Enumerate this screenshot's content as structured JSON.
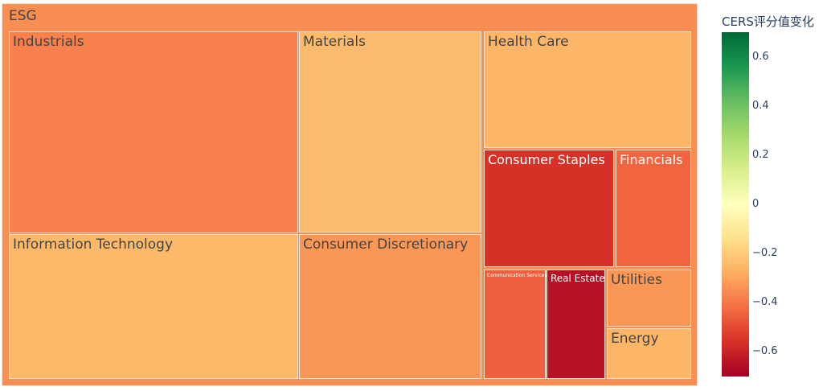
{
  "chart_data": {
    "type": "treemap",
    "root": "ESG",
    "colorbar": {
      "title": "CERS评分值变化",
      "range": [
        -0.7,
        0.7
      ],
      "ticks": [
        0.6,
        0.4,
        0.2,
        0,
        -0.2,
        -0.4,
        -0.6
      ],
      "tick_labels": [
        "0.6",
        "0.4",
        "0.2",
        "0",
        "−0.2",
        "−0.4",
        "−0.6"
      ],
      "colorscale": [
        "#a50026",
        "#d73027",
        "#f46d43",
        "#fdae61",
        "#fee08b",
        "#ffffbf",
        "#d9ef8b",
        "#a6d96a",
        "#66bd63",
        "#1a9850",
        "#006837"
      ]
    },
    "root_color_value": -0.35,
    "items": [
      {
        "label": "Industrials",
        "size": 21.6,
        "value": -0.38
      },
      {
        "label": "Information Technology",
        "size": 16.0,
        "value": -0.25
      },
      {
        "label": "Materials",
        "size": 13.2,
        "value": -0.24
      },
      {
        "label": "Consumer Discretionary",
        "size": 9.6,
        "value": -0.33
      },
      {
        "label": "Health Care",
        "size": 8.5,
        "value": -0.26
      },
      {
        "label": "Consumer Staples",
        "size": 5.8,
        "value": -0.56
      },
      {
        "label": "Financials",
        "size": 3.5,
        "value": -0.44
      },
      {
        "label": "Communication Services",
        "size": 2.1,
        "value": -0.45
      },
      {
        "label": "Real Estate",
        "size": 1.9,
        "value": -0.65
      },
      {
        "label": "Utilities",
        "size": 1.8,
        "value": -0.33
      },
      {
        "label": "Energy",
        "size": 1.7,
        "value": -0.26
      }
    ]
  }
}
